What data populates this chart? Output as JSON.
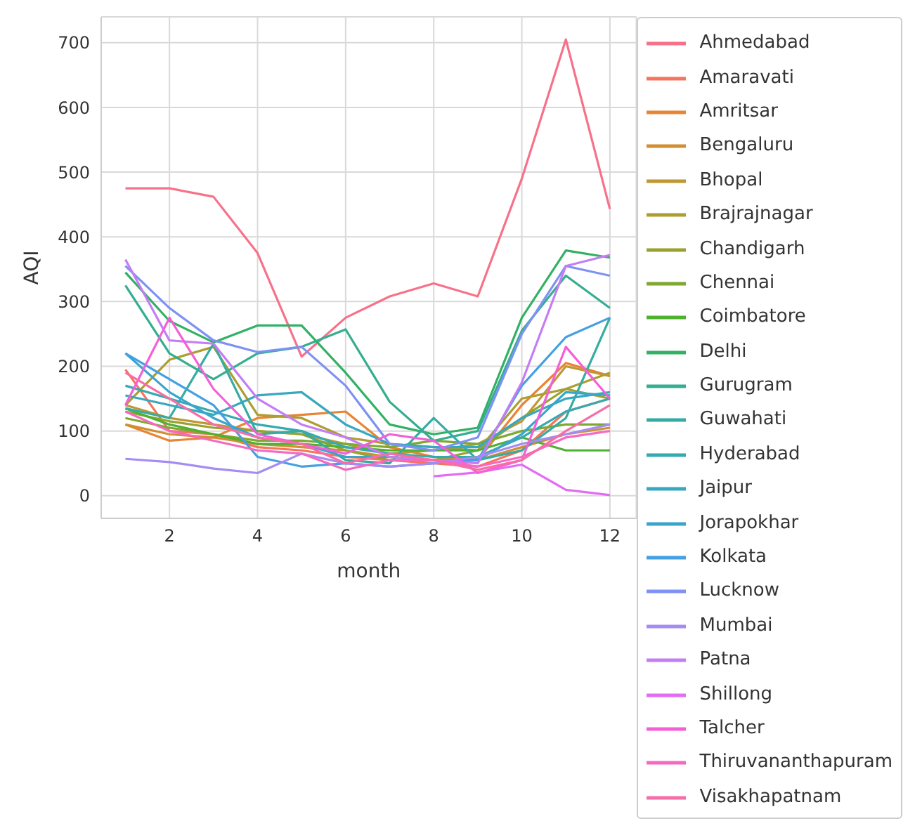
{
  "chart_data": {
    "type": "line",
    "xlabel": "month",
    "ylabel": "AQI",
    "x": [
      1,
      2,
      3,
      4,
      5,
      6,
      7,
      8,
      9,
      10,
      11,
      12
    ],
    "xlim": [
      0.45,
      12.6
    ],
    "xticks": [
      2,
      4,
      6,
      8,
      10,
      12
    ],
    "ylim": [
      -35,
      740
    ],
    "yticks": [
      0,
      100,
      200,
      300,
      400,
      500,
      600,
      700
    ],
    "grid": true,
    "legend": "right",
    "marker": "none",
    "line_style": "solid",
    "series": [
      {
        "name": "Ahmedabad",
        "color": "#f77189",
        "values": [
          475,
          475,
          462,
          375,
          215,
          275,
          308,
          328,
          308,
          490,
          705,
          443
        ]
      },
      {
        "name": "Amaravati",
        "color": "#f6745b",
        "values": [
          195,
          100,
          95,
          75,
          70,
          60,
          55,
          50,
          45,
          70,
          130,
          150
        ]
      },
      {
        "name": "Amritsar",
        "color": "#e88432",
        "values": [
          110,
          85,
          90,
          120,
          125,
          130,
          75,
          60,
          55,
          140,
          205,
          185
        ]
      },
      {
        "name": "Bengaluru",
        "color": "#d18f32",
        "values": [
          110,
          95,
          90,
          80,
          75,
          70,
          60,
          55,
          55,
          75,
          95,
          105
        ]
      },
      {
        "name": "Bhopal",
        "color": "#bf9732",
        "values": [
          140,
          120,
          110,
          100,
          95,
          80,
          65,
          70,
          80,
          115,
          200,
          185
        ]
      },
      {
        "name": "Brajrajnagar",
        "color": "#ae9d31",
        "values": [
          140,
          210,
          230,
          125,
          120,
          90,
          80,
          75,
          70,
          150,
          165,
          190
        ]
      },
      {
        "name": "Chandigarh",
        "color": "#99a231",
        "values": [
          130,
          115,
          105,
          100,
          95,
          70,
          55,
          55,
          70,
          120,
          165,
          150
        ]
      },
      {
        "name": "Chennai",
        "color": "#7fa831",
        "values": [
          120,
          105,
          95,
          85,
          85,
          80,
          75,
          85,
          80,
          100,
          110,
          110
        ]
      },
      {
        "name": "Coimbatore",
        "color": "#50b131",
        "values": [
          135,
          110,
          95,
          80,
          80,
          75,
          70,
          70,
          70,
          90,
          70,
          70
        ]
      },
      {
        "name": "Delhi",
        "color": "#32b165",
        "values": [
          345,
          270,
          237,
          263,
          263,
          190,
          110,
          95,
          105,
          275,
          379,
          368
        ]
      },
      {
        "name": "Gurugram",
        "color": "#34ae8f",
        "values": [
          325,
          220,
          180,
          220,
          230,
          257,
          145,
          85,
          100,
          255,
          340,
          290
        ]
      },
      {
        "name": "Guwahati",
        "color": "#35aca3",
        "values": [
          135,
          120,
          235,
          95,
          100,
          55,
          50,
          120,
          55,
          70,
          120,
          275
        ]
      },
      {
        "name": "Hyderabad",
        "color": "#36aab1",
        "values": [
          170,
          150,
          130,
          110,
          100,
          75,
          65,
          60,
          60,
          90,
          130,
          150
        ]
      },
      {
        "name": "Jaipur",
        "color": "#38a8be",
        "values": [
          155,
          140,
          125,
          155,
          160,
          110,
          80,
          75,
          75,
          120,
          150,
          160
        ]
      },
      {
        "name": "Jorapokhar",
        "color": "#3aa5cc",
        "values": [
          220,
          160,
          120,
          90,
          80,
          60,
          60,
          55,
          55,
          95,
          160,
          155
        ]
      },
      {
        "name": "Kolkata",
        "color": "#44a0e3",
        "values": [
          220,
          180,
          140,
          60,
          45,
          50,
          45,
          50,
          55,
          170,
          245,
          275
        ]
      },
      {
        "name": "Lucknow",
        "color": "#7e91f4",
        "values": [
          355,
          290,
          240,
          222,
          230,
          170,
          80,
          70,
          90,
          250,
          355,
          340
        ]
      },
      {
        "name": "Mumbai",
        "color": "#a48cf4",
        "values": [
          57,
          52,
          42,
          35,
          65,
          50,
          45,
          50,
          60,
          80,
          95,
          110
        ]
      },
      {
        "name": "Patna",
        "color": "#c47df4",
        "values": [
          365,
          240,
          235,
          150,
          110,
          90,
          60,
          55,
          50,
          175,
          355,
          372
        ]
      },
      {
        "name": "Shillong",
        "color": "#e36cf4",
        "values": [
          null,
          null,
          null,
          null,
          null,
          null,
          null,
          30,
          36,
          48,
          9,
          1
        ]
      },
      {
        "name": "Talcher",
        "color": "#f45fd8",
        "values": [
          140,
          275,
          165,
          95,
          80,
          65,
          95,
          85,
          35,
          55,
          230,
          150
        ]
      },
      {
        "name": "Thiruvananthapuram",
        "color": "#f569c0",
        "values": [
          130,
          100,
          85,
          70,
          65,
          40,
          55,
          55,
          45,
          60,
          90,
          100
        ]
      },
      {
        "name": "Visakhapatnam",
        "color": "#f66ea8",
        "values": [
          190,
          150,
          110,
          90,
          80,
          50,
          65,
          55,
          40,
          55,
          100,
          140
        ]
      }
    ]
  }
}
